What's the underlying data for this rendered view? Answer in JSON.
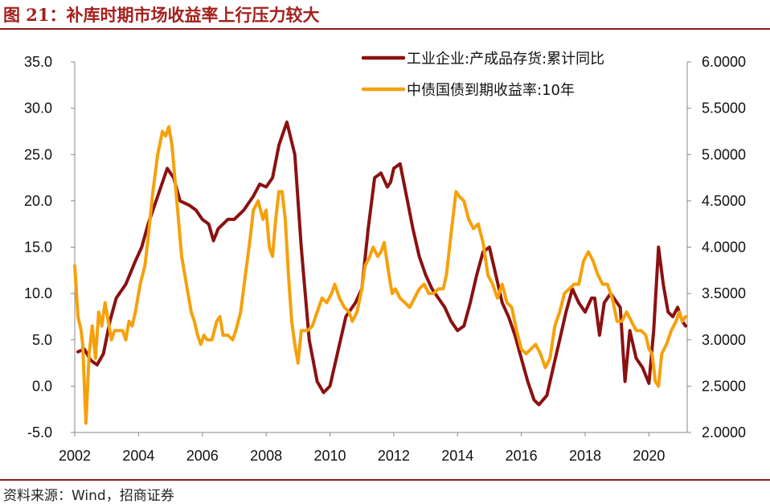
{
  "figure": {
    "title": "图 21：补库时期市场收益率上行压力较大",
    "source": "资料来源：Wind，招商证券"
  },
  "colors": {
    "inventory": "#8b1111",
    "bond": "#f5a10c",
    "rule": "#8b1a1a",
    "title": "#a3201c"
  },
  "chart_data": {
    "type": "line",
    "xlabel": "",
    "ylabel": "",
    "x_ticks": [
      "2002",
      "2004",
      "2006",
      "2008",
      "2010",
      "2012",
      "2014",
      "2016",
      "2018",
      "2020"
    ],
    "xlim": [
      2002.0,
      2021.2
    ],
    "y_left": {
      "ticks": [
        "-5.0",
        "0.0",
        "5.0",
        "10.0",
        "15.0",
        "20.0",
        "25.0",
        "30.0",
        "35.0"
      ],
      "lim": [
        -5,
        35
      ]
    },
    "y_right": {
      "ticks": [
        "2.0000",
        "2.5000",
        "3.0000",
        "3.5000",
        "4.0000",
        "4.5000",
        "5.0000",
        "5.5000",
        "6.0000"
      ],
      "lim": [
        2.0,
        6.0
      ]
    },
    "legend_position": "top-right",
    "grid": false,
    "series": [
      {
        "name": "工业企业:产成品存货:累计同比",
        "axis": "left",
        "color": "#8b1111",
        "points": [
          [
            2002.1,
            3.7
          ],
          [
            2002.3,
            4.0
          ],
          [
            2002.5,
            2.8
          ],
          [
            2002.7,
            2.3
          ],
          [
            2002.9,
            3.5
          ],
          [
            2003.1,
            7.0
          ],
          [
            2003.3,
            9.5
          ],
          [
            2003.6,
            11.0
          ],
          [
            2003.9,
            13.5
          ],
          [
            2004.1,
            15.0
          ],
          [
            2004.3,
            17.5
          ],
          [
            2004.6,
            20.5
          ],
          [
            2004.9,
            23.5
          ],
          [
            2005.1,
            22.5
          ],
          [
            2005.3,
            20.0
          ],
          [
            2005.6,
            19.5
          ],
          [
            2005.8,
            19.0
          ],
          [
            2006.0,
            18.0
          ],
          [
            2006.2,
            17.5
          ],
          [
            2006.35,
            15.7
          ],
          [
            2006.5,
            17.0
          ],
          [
            2006.8,
            18.0
          ],
          [
            2007.0,
            18.0
          ],
          [
            2007.3,
            19.0
          ],
          [
            2007.6,
            20.5
          ],
          [
            2007.8,
            21.8
          ],
          [
            2008.0,
            21.5
          ],
          [
            2008.2,
            22.5
          ],
          [
            2008.4,
            26.0
          ],
          [
            2008.65,
            28.5
          ],
          [
            2008.9,
            25.0
          ],
          [
            2009.1,
            15.0
          ],
          [
            2009.35,
            5.0
          ],
          [
            2009.6,
            0.5
          ],
          [
            2009.8,
            -0.7
          ],
          [
            2010.0,
            0.0
          ],
          [
            2010.2,
            3.0
          ],
          [
            2010.5,
            7.5
          ],
          [
            2010.8,
            9.0
          ],
          [
            2011.0,
            10.5
          ],
          [
            2011.2,
            17.0
          ],
          [
            2011.4,
            22.5
          ],
          [
            2011.6,
            23.0
          ],
          [
            2011.8,
            21.5
          ],
          [
            2011.9,
            22.0
          ],
          [
            2012.0,
            23.5
          ],
          [
            2012.2,
            24.0
          ],
          [
            2012.4,
            20.5
          ],
          [
            2012.6,
            17.0
          ],
          [
            2012.8,
            14.0
          ],
          [
            2013.0,
            12.0
          ],
          [
            2013.2,
            10.5
          ],
          [
            2013.4,
            9.5
          ],
          [
            2013.6,
            8.5
          ],
          [
            2013.8,
            7.0
          ],
          [
            2014.0,
            6.0
          ],
          [
            2014.2,
            6.5
          ],
          [
            2014.4,
            9.0
          ],
          [
            2014.6,
            12.0
          ],
          [
            2014.8,
            14.5
          ],
          [
            2015.0,
            15.0
          ],
          [
            2015.2,
            12.0
          ],
          [
            2015.4,
            9.0
          ],
          [
            2015.6,
            7.5
          ],
          [
            2015.8,
            5.5
          ],
          [
            2016.0,
            3.0
          ],
          [
            2016.2,
            0.5
          ],
          [
            2016.4,
            -1.5
          ],
          [
            2016.55,
            -2.0
          ],
          [
            2016.8,
            -1.0
          ],
          [
            2017.0,
            2.0
          ],
          [
            2017.2,
            5.0
          ],
          [
            2017.4,
            8.0
          ],
          [
            2017.6,
            10.5
          ],
          [
            2017.8,
            9.0
          ],
          [
            2018.0,
            8.0
          ],
          [
            2018.2,
            9.5
          ],
          [
            2018.3,
            9.5
          ],
          [
            2018.45,
            5.5
          ],
          [
            2018.6,
            9.0
          ],
          [
            2018.8,
            10.0
          ],
          [
            2019.0,
            9.0
          ],
          [
            2019.1,
            8.5
          ],
          [
            2019.25,
            0.5
          ],
          [
            2019.4,
            6.0
          ],
          [
            2019.6,
            3.0
          ],
          [
            2019.8,
            2.0
          ],
          [
            2020.0,
            0.3
          ],
          [
            2020.15,
            6.0
          ],
          [
            2020.3,
            15.0
          ],
          [
            2020.45,
            11.0
          ],
          [
            2020.6,
            8.0
          ],
          [
            2020.75,
            7.5
          ],
          [
            2020.9,
            8.5
          ],
          [
            2021.05,
            7.0
          ],
          [
            2021.15,
            6.5
          ]
        ]
      },
      {
        "name": "中债国债到期收益率:10年",
        "axis": "right",
        "color": "#f5a10c",
        "points": [
          [
            2002.0,
            3.8
          ],
          [
            2002.1,
            3.25
          ],
          [
            2002.2,
            3.1
          ],
          [
            2002.25,
            2.95
          ],
          [
            2002.35,
            2.1
          ],
          [
            2002.45,
            2.85
          ],
          [
            2002.55,
            3.15
          ],
          [
            2002.65,
            2.8
          ],
          [
            2002.75,
            3.3
          ],
          [
            2002.85,
            3.15
          ],
          [
            2002.95,
            3.4
          ],
          [
            2003.05,
            3.2
          ],
          [
            2003.15,
            3.0
          ],
          [
            2003.25,
            3.1
          ],
          [
            2003.35,
            3.1
          ],
          [
            2003.5,
            3.1
          ],
          [
            2003.6,
            3.0
          ],
          [
            2003.7,
            3.2
          ],
          [
            2003.8,
            3.15
          ],
          [
            2003.9,
            3.3
          ],
          [
            2004.05,
            3.6
          ],
          [
            2004.2,
            3.8
          ],
          [
            2004.3,
            4.1
          ],
          [
            2004.45,
            4.6
          ],
          [
            2004.6,
            5.0
          ],
          [
            2004.75,
            5.25
          ],
          [
            2004.85,
            5.2
          ],
          [
            2004.95,
            5.3
          ],
          [
            2005.05,
            5.1
          ],
          [
            2005.15,
            4.7
          ],
          [
            2005.25,
            4.3
          ],
          [
            2005.35,
            3.9
          ],
          [
            2005.5,
            3.6
          ],
          [
            2005.65,
            3.3
          ],
          [
            2005.75,
            3.2
          ],
          [
            2005.85,
            3.05
          ],
          [
            2005.95,
            2.95
          ],
          [
            2006.05,
            3.05
          ],
          [
            2006.15,
            3.0
          ],
          [
            2006.3,
            3.0
          ],
          [
            2006.45,
            3.2
          ],
          [
            2006.55,
            3.25
          ],
          [
            2006.65,
            3.05
          ],
          [
            2006.8,
            3.05
          ],
          [
            2006.95,
            3.0
          ],
          [
            2007.05,
            3.1
          ],
          [
            2007.2,
            3.3
          ],
          [
            2007.35,
            3.7
          ],
          [
            2007.5,
            4.1
          ],
          [
            2007.6,
            4.4
          ],
          [
            2007.75,
            4.5
          ],
          [
            2007.9,
            4.3
          ],
          [
            2008.0,
            4.4
          ],
          [
            2008.1,
            4.0
          ],
          [
            2008.2,
            3.9
          ],
          [
            2008.3,
            4.3
          ],
          [
            2008.4,
            4.6
          ],
          [
            2008.5,
            4.6
          ],
          [
            2008.6,
            4.3
          ],
          [
            2008.7,
            3.7
          ],
          [
            2008.8,
            3.2
          ],
          [
            2008.9,
            2.95
          ],
          [
            2009.0,
            2.75
          ],
          [
            2009.1,
            3.1
          ],
          [
            2009.3,
            3.1
          ],
          [
            2009.45,
            3.15
          ],
          [
            2009.6,
            3.3
          ],
          [
            2009.75,
            3.45
          ],
          [
            2009.9,
            3.4
          ],
          [
            2010.05,
            3.5
          ],
          [
            2010.15,
            3.6
          ],
          [
            2010.3,
            3.45
          ],
          [
            2010.45,
            3.35
          ],
          [
            2010.6,
            3.3
          ],
          [
            2010.7,
            3.2
          ],
          [
            2010.85,
            3.3
          ],
          [
            2011.0,
            3.55
          ],
          [
            2011.1,
            3.8
          ],
          [
            2011.25,
            3.9
          ],
          [
            2011.35,
            4.0
          ],
          [
            2011.5,
            3.9
          ],
          [
            2011.6,
            3.95
          ],
          [
            2011.7,
            4.05
          ],
          [
            2011.85,
            3.7
          ],
          [
            2011.95,
            3.5
          ],
          [
            2012.05,
            3.55
          ],
          [
            2012.2,
            3.45
          ],
          [
            2012.35,
            3.4
          ],
          [
            2012.5,
            3.35
          ],
          [
            2012.65,
            3.45
          ],
          [
            2012.8,
            3.55
          ],
          [
            2012.95,
            3.6
          ],
          [
            2013.1,
            3.5
          ],
          [
            2013.25,
            3.5
          ],
          [
            2013.4,
            3.55
          ],
          [
            2013.55,
            3.55
          ],
          [
            2013.65,
            3.7
          ],
          [
            2013.75,
            4.0
          ],
          [
            2013.85,
            4.3
          ],
          [
            2013.95,
            4.6
          ],
          [
            2014.05,
            4.55
          ],
          [
            2014.2,
            4.5
          ],
          [
            2014.35,
            4.3
          ],
          [
            2014.5,
            4.2
          ],
          [
            2014.65,
            4.25
          ],
          [
            2014.8,
            4.05
          ],
          [
            2014.95,
            3.7
          ],
          [
            2015.1,
            3.6
          ],
          [
            2015.25,
            3.45
          ],
          [
            2015.4,
            3.6
          ],
          [
            2015.55,
            3.4
          ],
          [
            2015.7,
            3.35
          ],
          [
            2015.85,
            3.1
          ],
          [
            2016.0,
            2.9
          ],
          [
            2016.15,
            2.85
          ],
          [
            2016.3,
            2.9
          ],
          [
            2016.45,
            2.95
          ],
          [
            2016.6,
            2.85
          ],
          [
            2016.75,
            2.7
          ],
          [
            2016.9,
            2.8
          ],
          [
            2017.05,
            3.15
          ],
          [
            2017.2,
            3.3
          ],
          [
            2017.35,
            3.5
          ],
          [
            2017.5,
            3.55
          ],
          [
            2017.65,
            3.6
          ],
          [
            2017.8,
            3.6
          ],
          [
            2017.95,
            3.85
          ],
          [
            2018.1,
            3.95
          ],
          [
            2018.25,
            3.85
          ],
          [
            2018.4,
            3.7
          ],
          [
            2018.55,
            3.6
          ],
          [
            2018.7,
            3.6
          ],
          [
            2018.85,
            3.45
          ],
          [
            2019.0,
            3.2
          ],
          [
            2019.15,
            3.2
          ],
          [
            2019.3,
            3.3
          ],
          [
            2019.45,
            3.2
          ],
          [
            2019.6,
            3.1
          ],
          [
            2019.75,
            3.1
          ],
          [
            2019.9,
            3.05
          ],
          [
            2020.0,
            2.9
          ],
          [
            2020.1,
            2.85
          ],
          [
            2020.2,
            2.55
          ],
          [
            2020.3,
            2.5
          ],
          [
            2020.4,
            2.85
          ],
          [
            2020.55,
            2.95
          ],
          [
            2020.7,
            3.1
          ],
          [
            2020.85,
            3.2
          ],
          [
            2020.95,
            3.3
          ],
          [
            2021.05,
            3.2
          ],
          [
            2021.15,
            3.25
          ]
        ]
      }
    ]
  }
}
